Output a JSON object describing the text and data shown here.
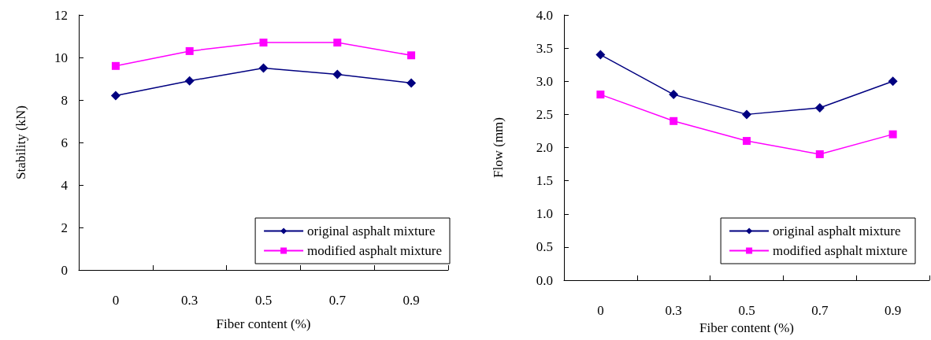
{
  "chart_data": [
    {
      "type": "line",
      "xlabel": "Fiber content (%)",
      "ylabel": "Stability (kN)",
      "categories": [
        "0",
        "0.3",
        "0.5",
        "0.7",
        "0.9"
      ],
      "series": [
        {
          "name": "original asphalt mixture",
          "color": "#000080",
          "marker": "diamond",
          "values": [
            8.2,
            8.9,
            9.5,
            9.2,
            8.8
          ]
        },
        {
          "name": "modified asphalt mixture",
          "color": "#ff00ff",
          "marker": "square",
          "values": [
            9.6,
            10.3,
            10.7,
            10.7,
            10.1
          ]
        }
      ],
      "ylim": [
        0,
        12
      ],
      "yticks": [
        0,
        2,
        4,
        6,
        8,
        10,
        12
      ],
      "grid": false,
      "legend": "bottom right",
      "line_style": "solid"
    },
    {
      "type": "line",
      "xlabel": "Fiber content (%)",
      "ylabel": "Flow (mm)",
      "categories": [
        "0",
        "0.3",
        "0.5",
        "0.7",
        "0.9"
      ],
      "series": [
        {
          "name": "original asphalt mixture",
          "color": "#000080",
          "marker": "diamond",
          "values": [
            3.4,
            2.8,
            2.5,
            2.6,
            3.0
          ]
        },
        {
          "name": "modified asphalt mixture",
          "color": "#ff00ff",
          "marker": "square",
          "values": [
            2.8,
            2.4,
            2.1,
            1.9,
            2.2
          ]
        }
      ],
      "ylim": [
        0,
        4
      ],
      "yticks": [
        {
          "value": 0,
          "label": "0.0"
        },
        {
          "value": 0.5,
          "label": "0.5"
        },
        {
          "value": 1,
          "label": "1.0"
        },
        {
          "value": 1.5,
          "label": "1.5"
        },
        {
          "value": 2,
          "label": "2.0"
        },
        {
          "value": 2.5,
          "label": "2.5"
        },
        {
          "value": 3,
          "label": "3.0"
        },
        {
          "value": 3.5,
          "label": "3.5"
        },
        {
          "value": 4,
          "label": "4.0"
        }
      ],
      "grid": false,
      "legend": "bottom right",
      "line_style": "solid"
    }
  ]
}
